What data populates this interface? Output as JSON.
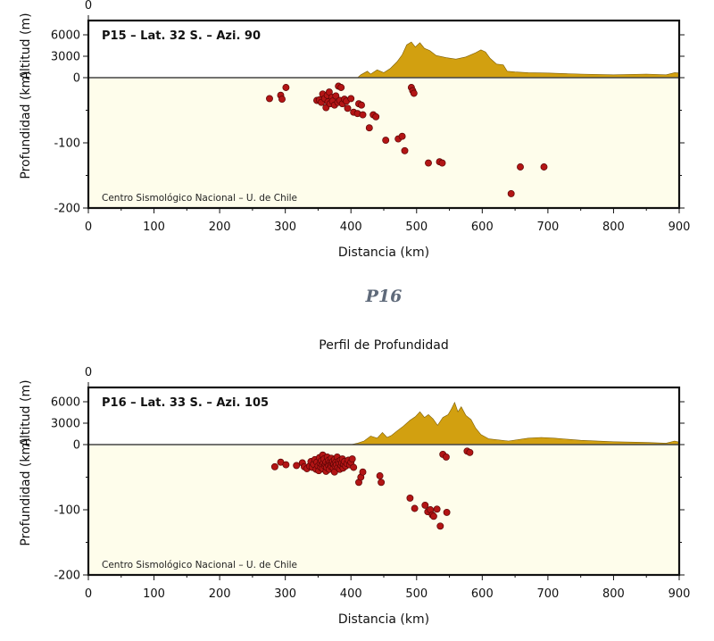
{
  "colors": {
    "terrain": "#d2a010",
    "subsurface": "#fefdeb",
    "quake": "#b31515",
    "frame": "#111111"
  },
  "section": {
    "heading": "P16",
    "subtitle": "Perfil de Profundidad"
  },
  "chart_data": [
    {
      "type": "scatter",
      "profile_label": "P15 – Lat. 32 S. – Azi. 90",
      "credit": "Centro Sismológico Nacional – U. de Chile",
      "xlabel": "Distancia (km)",
      "ylabel_depth": "Profundidad (km)",
      "ylabel_alt": "Altitud (m)",
      "top_tick": "0",
      "xlim": [
        0,
        900
      ],
      "x_ticks": [
        0,
        100,
        200,
        300,
        400,
        500,
        600,
        700,
        800,
        900
      ],
      "depth_lim": [
        -200,
        0
      ],
      "depth_ticks": [
        0,
        -100,
        -200
      ],
      "alt_lim": [
        0,
        8000
      ],
      "alt_ticks": [
        6000,
        3000,
        0
      ],
      "grid": false,
      "topography": [
        [
          0,
          0
        ],
        [
          410,
          0
        ],
        [
          415,
          400
        ],
        [
          425,
          900
        ],
        [
          430,
          500
        ],
        [
          440,
          1100
        ],
        [
          450,
          700
        ],
        [
          460,
          1300
        ],
        [
          470,
          2200
        ],
        [
          478,
          3200
        ],
        [
          485,
          4600
        ],
        [
          492,
          5000
        ],
        [
          498,
          4300
        ],
        [
          505,
          4900
        ],
        [
          512,
          4100
        ],
        [
          520,
          3800
        ],
        [
          530,
          3100
        ],
        [
          545,
          2800
        ],
        [
          560,
          2600
        ],
        [
          575,
          2900
        ],
        [
          590,
          3500
        ],
        [
          598,
          3900
        ],
        [
          605,
          3600
        ],
        [
          612,
          2700
        ],
        [
          622,
          1900
        ],
        [
          632,
          1800
        ],
        [
          638,
          900
        ],
        [
          650,
          800
        ],
        [
          670,
          700
        ],
        [
          700,
          650
        ],
        [
          750,
          500
        ],
        [
          800,
          400
        ],
        [
          850,
          500
        ],
        [
          880,
          400
        ],
        [
          893,
          700
        ],
        [
          900,
          650
        ]
      ],
      "earthquakes": [
        [
          276,
          -32
        ],
        [
          293,
          -27
        ],
        [
          295,
          -33
        ],
        [
          301,
          -15
        ],
        [
          348,
          -35
        ],
        [
          352,
          -34
        ],
        [
          355,
          -38
        ],
        [
          357,
          -25
        ],
        [
          360,
          -32
        ],
        [
          362,
          -46
        ],
        [
          364,
          -27
        ],
        [
          365,
          -37
        ],
        [
          367,
          -22
        ],
        [
          368,
          -40
        ],
        [
          371,
          -30
        ],
        [
          372,
          -36
        ],
        [
          375,
          -42
        ],
        [
          377,
          -28
        ],
        [
          380,
          -38
        ],
        [
          381,
          -13
        ],
        [
          383,
          -35
        ],
        [
          385,
          -15
        ],
        [
          387,
          -40
        ],
        [
          390,
          -33
        ],
        [
          393,
          -36
        ],
        [
          395,
          -47
        ],
        [
          400,
          -32
        ],
        [
          404,
          -53
        ],
        [
          410,
          -55
        ],
        [
          412,
          -40
        ],
        [
          416,
          -42
        ],
        [
          418,
          -57
        ],
        [
          428,
          -77
        ],
        [
          434,
          -57
        ],
        [
          438,
          -60
        ],
        [
          453,
          -96
        ],
        [
          472,
          -94
        ],
        [
          478,
          -90
        ],
        [
          482,
          -112
        ],
        [
          492,
          -15
        ],
        [
          494,
          -20
        ],
        [
          496,
          -24
        ],
        [
          518,
          -131
        ],
        [
          535,
          -129
        ],
        [
          539,
          -131
        ],
        [
          658,
          -137
        ],
        [
          694,
          -137
        ],
        [
          644,
          -178
        ]
      ]
    },
    {
      "type": "scatter",
      "profile_label": "P16 – Lat. 33 S. – Azi. 105",
      "credit": "Centro Sismológico Nacional – U. de Chile",
      "xlabel": "Distancia (km)",
      "ylabel_depth": "Profundidad (km)",
      "ylabel_alt": "Altitud (m)",
      "top_tick": "0",
      "xlim": [
        0,
        900
      ],
      "x_ticks": [
        0,
        100,
        200,
        300,
        400,
        500,
        600,
        700,
        800,
        900
      ],
      "depth_lim": [
        -200,
        0
      ],
      "depth_ticks": [
        0,
        -100,
        -200
      ],
      "alt_lim": [
        0,
        8000
      ],
      "alt_ticks": [
        6000,
        3000,
        0
      ],
      "grid": false,
      "topography": [
        [
          0,
          0
        ],
        [
          400,
          0
        ],
        [
          410,
          200
        ],
        [
          420,
          500
        ],
        [
          430,
          1200
        ],
        [
          440,
          900
        ],
        [
          448,
          1700
        ],
        [
          455,
          1000
        ],
        [
          462,
          1300
        ],
        [
          470,
          1900
        ],
        [
          480,
          2600
        ],
        [
          490,
          3400
        ],
        [
          498,
          3900
        ],
        [
          505,
          4600
        ],
        [
          512,
          3800
        ],
        [
          518,
          4200
        ],
        [
          525,
          3600
        ],
        [
          532,
          2700
        ],
        [
          540,
          3800
        ],
        [
          548,
          4200
        ],
        [
          553,
          5000
        ],
        [
          558,
          5900
        ],
        [
          563,
          4600
        ],
        [
          568,
          5300
        ],
        [
          575,
          4100
        ],
        [
          583,
          3500
        ],
        [
          590,
          2300
        ],
        [
          598,
          1400
        ],
        [
          610,
          800
        ],
        [
          640,
          500
        ],
        [
          670,
          900
        ],
        [
          690,
          1000
        ],
        [
          710,
          900
        ],
        [
          750,
          600
        ],
        [
          800,
          400
        ],
        [
          850,
          300
        ],
        [
          880,
          200
        ],
        [
          893,
          500
        ],
        [
          900,
          350
        ]
      ],
      "earthquakes": [
        [
          284,
          -34
        ],
        [
          293,
          -27
        ],
        [
          301,
          -31
        ],
        [
          317,
          -32
        ],
        [
          326,
          -28
        ],
        [
          329,
          -34
        ],
        [
          333,
          -37
        ],
        [
          337,
          -33
        ],
        [
          339,
          -26
        ],
        [
          341,
          -35
        ],
        [
          343,
          -30
        ],
        [
          345,
          -23
        ],
        [
          347,
          -38
        ],
        [
          348,
          -27
        ],
        [
          350,
          -33
        ],
        [
          351,
          -40
        ],
        [
          352,
          -20
        ],
        [
          353,
          -29
        ],
        [
          354,
          -35
        ],
        [
          355,
          -25
        ],
        [
          356,
          -31
        ],
        [
          357,
          -37
        ],
        [
          357,
          -16
        ],
        [
          358,
          -28
        ],
        [
          359,
          -22
        ],
        [
          360,
          -33
        ],
        [
          361,
          -30
        ],
        [
          362,
          -27
        ],
        [
          362,
          -41
        ],
        [
          363,
          -35
        ],
        [
          364,
          -19
        ],
        [
          365,
          -29
        ],
        [
          366,
          -32
        ],
        [
          366,
          -24
        ],
        [
          367,
          -38
        ],
        [
          368,
          -27
        ],
        [
          369,
          -31
        ],
        [
          370,
          -21
        ],
        [
          370,
          -34
        ],
        [
          371,
          -28
        ],
        [
          372,
          -26
        ],
        [
          373,
          -36
        ],
        [
          374,
          -30
        ],
        [
          375,
          -23
        ],
        [
          375,
          -42
        ],
        [
          376,
          -33
        ],
        [
          377,
          -27
        ],
        [
          378,
          -31
        ],
        [
          379,
          -19
        ],
        [
          380,
          -35
        ],
        [
          381,
          -26
        ],
        [
          382,
          -29
        ],
        [
          383,
          -38
        ],
        [
          384,
          -24
        ],
        [
          385,
          -32
        ],
        [
          386,
          -28
        ],
        [
          387,
          -22
        ],
        [
          388,
          -36
        ],
        [
          389,
          -30
        ],
        [
          390,
          -26
        ],
        [
          392,
          -33
        ],
        [
          394,
          -29
        ],
        [
          396,
          -24
        ],
        [
          398,
          -31
        ],
        [
          400,
          -27
        ],
        [
          402,
          -22
        ],
        [
          404,
          -35
        ],
        [
          412,
          -58
        ],
        [
          415,
          -50
        ],
        [
          418,
          -42
        ],
        [
          444,
          -48
        ],
        [
          446,
          -58
        ],
        [
          490,
          -82
        ],
        [
          497,
          -98
        ],
        [
          513,
          -93
        ],
        [
          517,
          -103
        ],
        [
          521,
          -100
        ],
        [
          524,
          -108
        ],
        [
          526,
          -110
        ],
        [
          531,
          -99
        ],
        [
          536,
          -125
        ],
        [
          546,
          -104
        ],
        [
          540,
          -15
        ],
        [
          545,
          -19
        ],
        [
          577,
          -10
        ],
        [
          581,
          -12
        ]
      ]
    }
  ]
}
